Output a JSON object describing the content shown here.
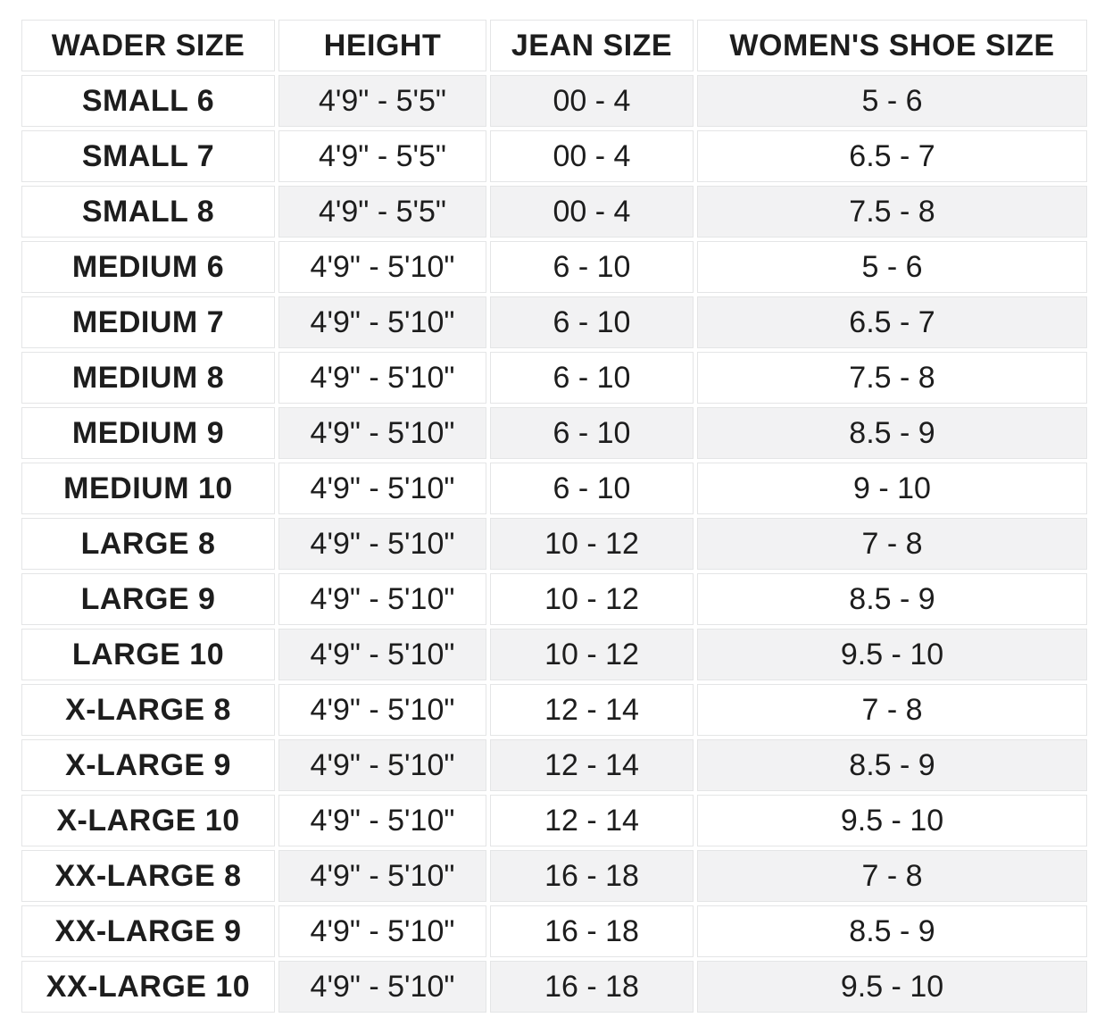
{
  "colors": {
    "text": "#1d1d1d",
    "border": "#e4e5e6",
    "stripe": "#f2f2f3"
  },
  "chart_data": {
    "type": "table",
    "title": "",
    "columns": [
      "WADER SIZE",
      "HEIGHT",
      "JEAN SIZE",
      "WOMEN'S SHOE SIZE"
    ],
    "rows": [
      {
        "wader_size": "SMALL 6",
        "height": "4'9\" - 5'5\"",
        "jean_size": "00 - 4",
        "shoe_size": "5 - 6"
      },
      {
        "wader_size": "SMALL 7",
        "height": "4'9\" - 5'5\"",
        "jean_size": "00 - 4",
        "shoe_size": "6.5 - 7"
      },
      {
        "wader_size": "SMALL 8",
        "height": "4'9\" - 5'5\"",
        "jean_size": "00 - 4",
        "shoe_size": "7.5 - 8"
      },
      {
        "wader_size": "MEDIUM 6",
        "height": "4'9\" - 5'10\"",
        "jean_size": "6 - 10",
        "shoe_size": "5 - 6"
      },
      {
        "wader_size": "MEDIUM 7",
        "height": "4'9\" - 5'10\"",
        "jean_size": "6 - 10",
        "shoe_size": "6.5 - 7"
      },
      {
        "wader_size": "MEDIUM 8",
        "height": "4'9\" - 5'10\"",
        "jean_size": "6 - 10",
        "shoe_size": "7.5 - 8"
      },
      {
        "wader_size": "MEDIUM 9",
        "height": "4'9\" - 5'10\"",
        "jean_size": "6 - 10",
        "shoe_size": "8.5 - 9"
      },
      {
        "wader_size": "MEDIUM 10",
        "height": "4'9\" - 5'10\"",
        "jean_size": "6 - 10",
        "shoe_size": "9 - 10"
      },
      {
        "wader_size": "LARGE 8",
        "height": "4'9\" - 5'10\"",
        "jean_size": "10 - 12",
        "shoe_size": "7 - 8"
      },
      {
        "wader_size": "LARGE 9",
        "height": "4'9\" - 5'10\"",
        "jean_size": "10 - 12",
        "shoe_size": "8.5 - 9"
      },
      {
        "wader_size": "LARGE 10",
        "height": "4'9\" - 5'10\"",
        "jean_size": "10 - 12",
        "shoe_size": "9.5 - 10"
      },
      {
        "wader_size": "X-LARGE 8",
        "height": "4'9\" - 5'10\"",
        "jean_size": "12 - 14",
        "shoe_size": "7 - 8"
      },
      {
        "wader_size": "X-LARGE 9",
        "height": "4'9\" - 5'10\"",
        "jean_size": "12 - 14",
        "shoe_size": "8.5 - 9"
      },
      {
        "wader_size": "X-LARGE 10",
        "height": "4'9\" - 5'10\"",
        "jean_size": "12 - 14",
        "shoe_size": "9.5 - 10"
      },
      {
        "wader_size": "XX-LARGE 8",
        "height": "4'9\" - 5'10\"",
        "jean_size": "16 - 18",
        "shoe_size": "7 - 8"
      },
      {
        "wader_size": "XX-LARGE 9",
        "height": "4'9\" - 5'10\"",
        "jean_size": "16 - 18",
        "shoe_size": "8.5 - 9"
      },
      {
        "wader_size": "XX-LARGE 10",
        "height": "4'9\" - 5'10\"",
        "jean_size": "16 - 18",
        "shoe_size": "9.5 - 10"
      }
    ]
  }
}
